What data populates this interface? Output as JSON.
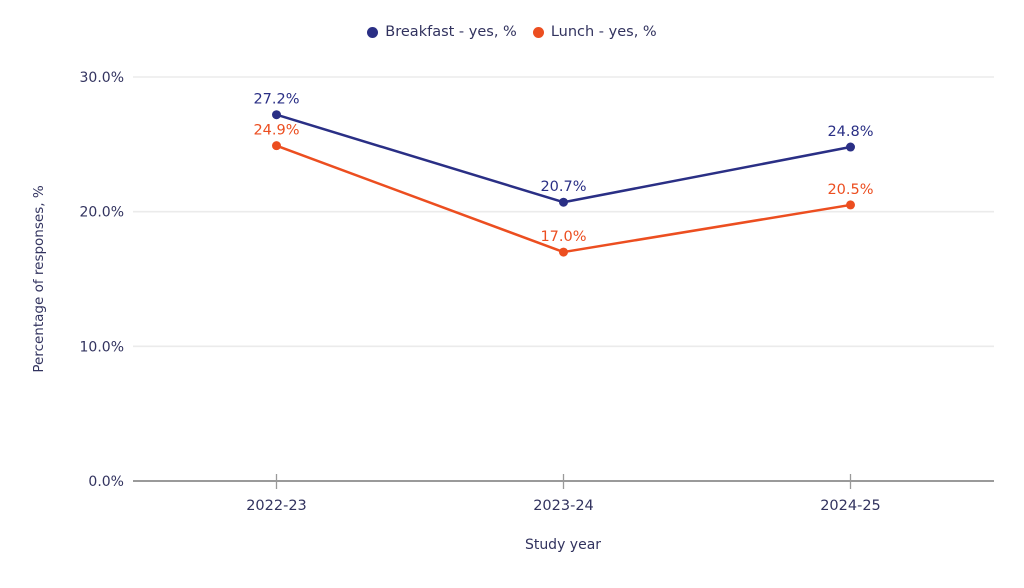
{
  "chart_data": {
    "type": "line",
    "categories": [
      "2022-23",
      "2023-24",
      "2024-25"
    ],
    "series": [
      {
        "name": "Breakfast - yes, %",
        "values": [
          27.2,
          20.7,
          24.8
        ],
        "labels": [
          "27.2%",
          "20.7%",
          "24.8%"
        ],
        "color": "#2a2f85"
      },
      {
        "name": "Lunch - yes, %",
        "values": [
          24.9,
          17.0,
          20.5
        ],
        "labels": [
          "24.9%",
          "17.0%",
          "20.5%"
        ],
        "color": "#ec4e20"
      }
    ],
    "title": "",
    "xlabel": "Study year",
    "ylabel": "Percentage of responses, %",
    "ylim": [
      0,
      30
    ],
    "ytick_step": 10,
    "yticks": [
      0,
      10,
      20,
      30
    ],
    "ytick_labels": [
      "0.0%",
      "10.0%",
      "20.0%",
      "30.0%"
    ],
    "grid": "horizontal",
    "legend_position": "top"
  },
  "colors": {
    "text": "#32335f",
    "grid": "#ebebeb",
    "axis": "#9a9a9a",
    "background": "#ffffff"
  }
}
